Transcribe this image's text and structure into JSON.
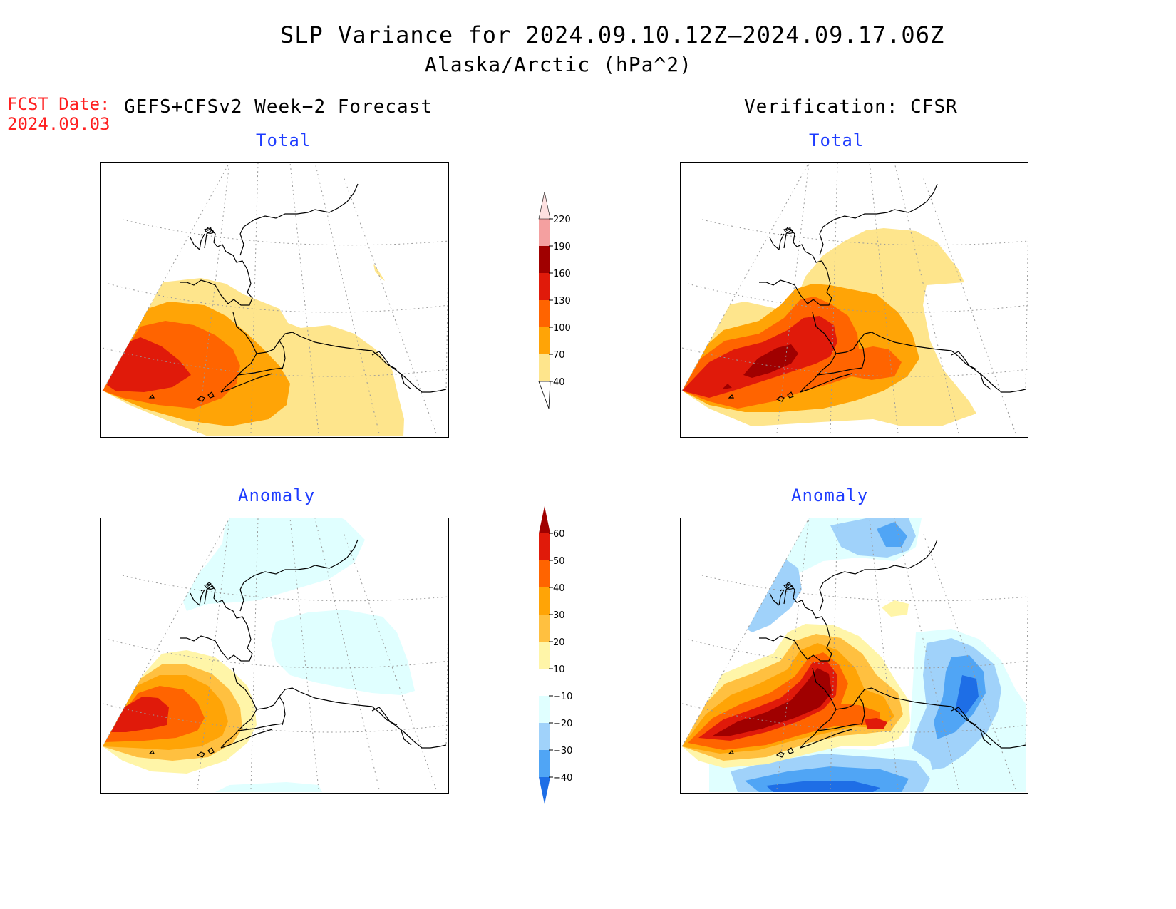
{
  "header": {
    "title": "SLP Variance for 2024.09.10.12Z—2024.09.17.06Z",
    "subtitle": "Alaska/Arctic (hPa^2)"
  },
  "forecast": {
    "label": "FCST Date:",
    "date": "2024.09.03"
  },
  "columns": {
    "left_source": "GEFS+CFSv2 Week−2 Forecast",
    "right_source": "Verification: CFSR"
  },
  "panels": {
    "top_left_label": "Total",
    "top_right_label": "Total",
    "bottom_left_label": "Anomaly",
    "bottom_right_label": "Anomaly"
  },
  "colorbars": {
    "total": {
      "levels": [
        "40",
        "70",
        "100",
        "130",
        "160",
        "190",
        "220"
      ],
      "colors": [
        "#fee58c",
        "#ffa406",
        "#ff6400",
        "#e01a0a",
        "#a00000",
        "#f4a0a0",
        "#fde0e0"
      ]
    },
    "anomaly": {
      "levels": [
        "60",
        "50",
        "40",
        "30",
        "20",
        "10",
        "−10",
        "−20",
        "−30",
        "−40"
      ],
      "colors": [
        "#a00000",
        "#e01a0a",
        "#ff6400",
        "#ffa406",
        "#ffc040",
        "#fff5a8",
        "#ffffff",
        "#e0ffff",
        "#a0d2fa",
        "#50a5f5",
        "#1e6ee6"
      ]
    }
  }
}
